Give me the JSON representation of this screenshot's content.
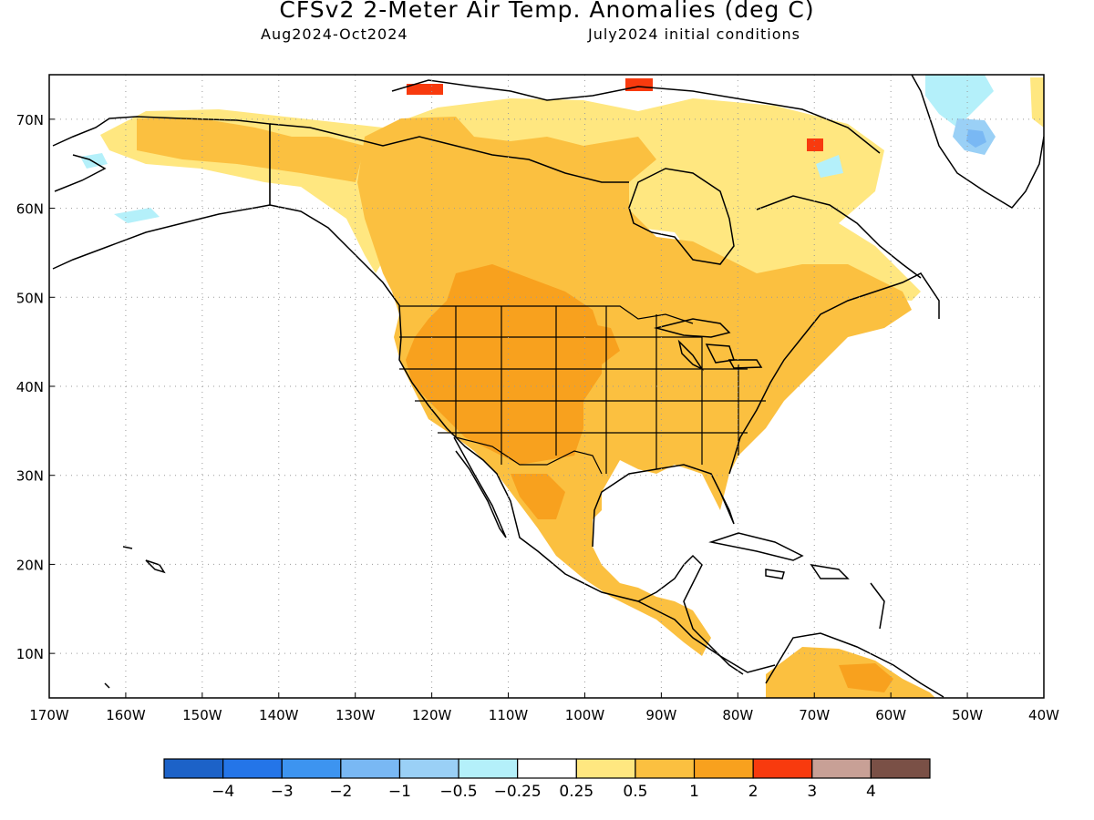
{
  "title": "CFSv2 2-Meter Air Temp. Anomalies (deg C)",
  "subtitle_left": "Aug2024-Oct2024",
  "subtitle_right": "July2024 initial conditions",
  "map": {
    "projection": "lat-lon",
    "lon_range": [
      -170,
      -40
    ],
    "lat_range": [
      5,
      75
    ],
    "grid": "dotted",
    "lon_ticks": [
      "170W",
      "160W",
      "150W",
      "140W",
      "130W",
      "120W",
      "110W",
      "100W",
      "90W",
      "80W",
      "70W",
      "60W",
      "50W",
      "40W"
    ],
    "lat_ticks": [
      "10N",
      "20N",
      "30N",
      "40N",
      "50N",
      "60N",
      "70N"
    ]
  },
  "legend": {
    "colors": [
      "#1c62c8",
      "#2475e8",
      "#3d94f0",
      "#79b8f4",
      "#9ad0f6",
      "#b4f0fa",
      "#ffffff",
      "#ffe780",
      "#fbc040",
      "#f8a11e",
      "#f83a0e",
      "#c8a096",
      "#7a5046"
    ],
    "labels": [
      "−4",
      "−3",
      "−2",
      "−1",
      "−0.5",
      "−0.25",
      "0.25",
      "0.5",
      "1",
      "2",
      "3",
      "4"
    ]
  }
}
